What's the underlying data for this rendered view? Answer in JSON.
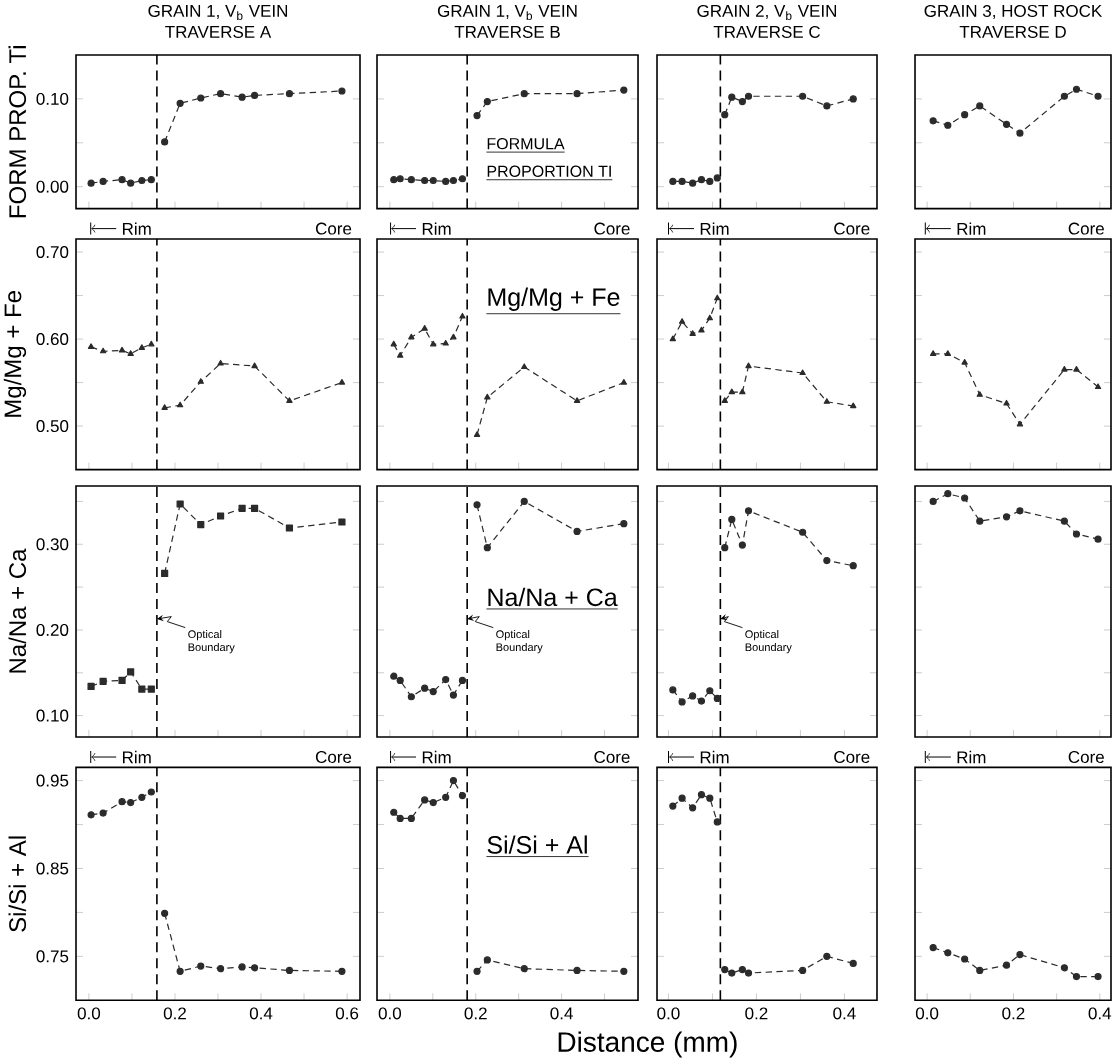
{
  "chart_data": [
    {
      "type": "line",
      "title": "GRAIN 1, V$_{b}$ VEIN",
      "subtitle": "TRAVERSE A",
      "ylabel": "FORM PROP. Ti",
      "annotations": [
        "Rim",
        "Core"
      ],
      "xlim": [
        -0.03,
        0.63
      ],
      "ylim": [
        -0.025,
        0.15
      ],
      "xticks": [
        0,
        0.1,
        0.2,
        0.3,
        0.4,
        0.5,
        0.6
      ],
      "yticks": [
        {
          "value": 0,
          "label": "0.00"
        },
        {
          "value": 0.05,
          "label": null
        },
        {
          "value": 0.1,
          "label": "0.10"
        }
      ],
      "tick_labels": "y",
      "marker": "circle",
      "line_style": "dashed",
      "ref_lines": [
        {
          "axis": "x",
          "value": 0.158,
          "line_style": "dashed"
        }
      ],
      "series": [
        {
          "color": "#2b2b2b",
          "x": [
            0.005,
            0.033,
            0.077,
            0.097,
            0.123,
            0.145
          ],
          "values": [
            0.004,
            0.006,
            0.008,
            0.004,
            0.007,
            0.008
          ]
        },
        {
          "color": "#2b2b2b",
          "x": [
            0.176,
            0.212,
            0.26,
            0.306,
            0.356,
            0.385,
            0.466,
            0.588
          ],
          "values": [
            0.051,
            0.095,
            0.101,
            0.106,
            0.102,
            0.104,
            0.106,
            0.109
          ]
        }
      ]
    },
    {
      "type": "line",
      "title": "GRAIN 1, V$_{b}$ VEIN",
      "subtitle": "TRAVERSE B",
      "annotations": [
        "Rim",
        "Core",
        "FORMULA",
        "PROPORTION TI"
      ],
      "xlim": [
        -0.03,
        0.578
      ],
      "ylim": [
        -0.025,
        0.15
      ],
      "xticks": [
        0,
        0.1,
        0.2,
        0.3,
        0.4,
        0.5
      ],
      "yticks": [
        0,
        0.05,
        0.1
      ],
      "tick_labels": false,
      "marker": "circle",
      "line_style": "dashed",
      "ref_lines": [
        {
          "axis": "x",
          "value": 0.18,
          "line_style": "dashed"
        }
      ],
      "series": [
        {
          "color": "#2b2b2b",
          "x": [
            0.009,
            0.024,
            0.05,
            0.081,
            0.101,
            0.13,
            0.148,
            0.169
          ],
          "values": [
            0.008,
            0.009,
            0.008,
            0.007,
            0.007,
            0.006,
            0.007,
            0.009
          ]
        },
        {
          "color": "#2b2b2b",
          "x": [
            0.203,
            0.227,
            0.313,
            0.436,
            0.545
          ],
          "values": [
            0.081,
            0.097,
            0.106,
            0.106,
            0.11
          ]
        }
      ]
    },
    {
      "type": "line",
      "title": "GRAIN 2, V$_{b}$ VEIN",
      "subtitle": "TRAVERSE C",
      "annotations": [
        "Rim",
        "Core"
      ],
      "xlim": [
        -0.026,
        0.474
      ],
      "ylim": [
        -0.025,
        0.15
      ],
      "xticks": [
        0,
        0.1,
        0.2,
        0.3,
        0.4
      ],
      "yticks": [
        0,
        0.05,
        0.1
      ],
      "tick_labels": false,
      "marker": "circle",
      "line_style": "dashed",
      "ref_lines": [
        {
          "axis": "x",
          "value": 0.118,
          "line_style": "dashed"
        }
      ],
      "series": [
        {
          "color": "#2b2b2b",
          "x": [
            0.01,
            0.031,
            0.055,
            0.075,
            0.094,
            0.111
          ],
          "values": [
            0.006,
            0.006,
            0.004,
            0.008,
            0.006,
            0.01
          ]
        },
        {
          "color": "#2b2b2b",
          "x": [
            0.128,
            0.144,
            0.168,
            0.182,
            0.305,
            0.36,
            0.42
          ],
          "values": [
            0.082,
            0.102,
            0.097,
            0.103,
            0.103,
            0.092,
            0.1
          ]
        }
      ]
    },
    {
      "type": "line",
      "title": "GRAIN 3, HOST ROCK",
      "subtitle": "TRAVERSE D",
      "annotations": [
        "Rim",
        "Core"
      ],
      "xlim": [
        -0.028,
        0.426
      ],
      "ylim": [
        -0.025,
        0.15
      ],
      "xticks": [
        0,
        0.1,
        0.2,
        0.3,
        0.4
      ],
      "yticks": [
        0,
        0.05,
        0.1
      ],
      "tick_labels": false,
      "marker": "circle",
      "line_style": "dashed",
      "series": [
        {
          "color": "#2b2b2b",
          "x": [
            0.014,
            0.048,
            0.087,
            0.122,
            0.184,
            0.215,
            0.318,
            0.346,
            0.396
          ],
          "values": [
            0.075,
            0.07,
            0.082,
            0.092,
            0.071,
            0.061,
            0.103,
            0.111,
            0.103
          ]
        }
      ]
    },
    {
      "type": "line",
      "ylabel": "Mg/Mg + Fe",
      "xlim": [
        -0.03,
        0.63
      ],
      "ylim": [
        0.45,
        0.715
      ],
      "xticks": [
        0,
        0.1,
        0.2,
        0.3,
        0.4,
        0.5,
        0.6
      ],
      "yticks": [
        {
          "value": 0.5,
          "label": "0.50"
        },
        {
          "value": 0.55,
          "label": null
        },
        {
          "value": 0.6,
          "label": "0.60"
        },
        {
          "value": 0.65,
          "label": null
        },
        {
          "value": 0.7,
          "label": "0.70"
        }
      ],
      "tick_labels": "y",
      "marker": "triangle",
      "line_style": "dashed",
      "ref_lines": [
        {
          "axis": "x",
          "value": 0.158,
          "line_style": "dashed"
        }
      ],
      "series": [
        {
          "color": "#2b2b2b",
          "x": [
            0.005,
            0.033,
            0.077,
            0.097,
            0.123,
            0.145
          ],
          "values": [
            0.591,
            0.586,
            0.587,
            0.583,
            0.59,
            0.594
          ]
        },
        {
          "color": "#2b2b2b",
          "x": [
            0.176,
            0.212,
            0.26,
            0.306,
            0.385,
            0.466,
            0.588
          ],
          "values": [
            0.521,
            0.524,
            0.551,
            0.572,
            0.569,
            0.529,
            0.55
          ]
        }
      ]
    },
    {
      "type": "line",
      "annotations": [
        "Mg/Mg + Fe"
      ],
      "xlim": [
        -0.03,
        0.578
      ],
      "ylim": [
        0.45,
        0.715
      ],
      "xticks": [
        0,
        0.1,
        0.2,
        0.3,
        0.4,
        0.5
      ],
      "yticks": [
        0.5,
        0.55,
        0.6,
        0.65,
        0.7
      ],
      "tick_labels": false,
      "marker": "triangle",
      "line_style": "dashed",
      "ref_lines": [
        {
          "axis": "x",
          "value": 0.18,
          "line_style": "dashed"
        }
      ],
      "series": [
        {
          "color": "#2b2b2b",
          "x": [
            0.009,
            0.024,
            0.05,
            0.081,
            0.101,
            0.13,
            0.148,
            0.169
          ],
          "values": [
            0.594,
            0.581,
            0.602,
            0.612,
            0.594,
            0.595,
            0.602,
            0.626
          ]
        },
        {
          "color": "#2b2b2b",
          "x": [
            0.203,
            0.227,
            0.313,
            0.436,
            0.545
          ],
          "values": [
            0.49,
            0.533,
            0.568,
            0.529,
            0.55
          ]
        }
      ]
    },
    {
      "type": "line",
      "xlim": [
        -0.026,
        0.474
      ],
      "ylim": [
        0.45,
        0.715
      ],
      "xticks": [
        0,
        0.1,
        0.2,
        0.3,
        0.4
      ],
      "yticks": [
        0.5,
        0.55,
        0.6,
        0.65,
        0.7
      ],
      "tick_labels": false,
      "marker": "triangle",
      "line_style": "dashed",
      "ref_lines": [
        {
          "axis": "x",
          "value": 0.118,
          "line_style": "dashed"
        }
      ],
      "series": [
        {
          "color": "#2b2b2b",
          "x": [
            0.01,
            0.031,
            0.055,
            0.075,
            0.094,
            0.111
          ],
          "values": [
            0.6,
            0.62,
            0.606,
            0.61,
            0.624,
            0.647
          ]
        },
        {
          "color": "#2b2b2b",
          "x": [
            0.128,
            0.144,
            0.168,
            0.182,
            0.305,
            0.36,
            0.42
          ],
          "values": [
            0.529,
            0.539,
            0.539,
            0.569,
            0.561,
            0.528,
            0.523
          ]
        }
      ]
    },
    {
      "type": "line",
      "xlim": [
        -0.028,
        0.426
      ],
      "ylim": [
        0.45,
        0.715
      ],
      "xticks": [
        0,
        0.1,
        0.2,
        0.3,
        0.4
      ],
      "yticks": [
        0.5,
        0.55,
        0.6,
        0.65,
        0.7
      ],
      "tick_labels": false,
      "marker": "triangle",
      "line_style": "dashed",
      "series": [
        {
          "color": "#2b2b2b",
          "x": [
            0.014,
            0.048,
            0.087,
            0.122,
            0.184,
            0.215,
            0.318,
            0.346,
            0.396
          ],
          "values": [
            0.583,
            0.583,
            0.573,
            0.536,
            0.526,
            0.502,
            0.565,
            0.565,
            0.545
          ]
        }
      ]
    },
    {
      "type": "line",
      "ylabel": "Na/Na + Ca",
      "annotations": [
        "Rim",
        "Core"
      ],
      "xlim": [
        -0.03,
        0.63
      ],
      "ylim": [
        0.075,
        0.368
      ],
      "xticks": [
        0,
        0.1,
        0.2,
        0.3,
        0.4,
        0.5,
        0.6
      ],
      "yticks": [
        {
          "value": 0.1,
          "label": "0.10"
        },
        {
          "value": 0.15,
          "label": null
        },
        {
          "value": 0.2,
          "label": "0.20"
        },
        {
          "value": 0.25,
          "label": null
        },
        {
          "value": 0.3,
          "label": "0.30"
        },
        {
          "value": 0.35,
          "label": null
        }
      ],
      "tick_labels": "y",
      "marker": "square",
      "line_style": "dashed",
      "ref_lines": [
        {
          "axis": "x",
          "value": 0.158,
          "line_style": "dashed",
          "label": "Optical Boundary"
        }
      ],
      "series": [
        {
          "color": "#2b2b2b",
          "x": [
            0.005,
            0.033,
            0.077,
            0.097,
            0.123,
            0.145
          ],
          "values": [
            0.134,
            0.14,
            0.141,
            0.151,
            0.131,
            0.131
          ]
        },
        {
          "color": "#2b2b2b",
          "x": [
            0.176,
            0.212,
            0.26,
            0.306,
            0.356,
            0.385,
            0.466,
            0.588
          ],
          "values": [
            0.266,
            0.347,
            0.323,
            0.333,
            0.342,
            0.342,
            0.319,
            0.326
          ]
        }
      ]
    },
    {
      "type": "line",
      "annotations": [
        "Rim",
        "Core",
        "Na/Na + Ca"
      ],
      "xlim": [
        -0.03,
        0.578
      ],
      "ylim": [
        0.075,
        0.368
      ],
      "xticks": [
        0,
        0.1,
        0.2,
        0.3,
        0.4,
        0.5
      ],
      "yticks": [
        0.1,
        0.15,
        0.2,
        0.25,
        0.3,
        0.35
      ],
      "tick_labels": false,
      "marker": "circle",
      "line_style": "dashed",
      "ref_lines": [
        {
          "axis": "x",
          "value": 0.18,
          "line_style": "dashed",
          "label": "Optical Boundary"
        }
      ],
      "series": [
        {
          "color": "#2b2b2b",
          "x": [
            0.009,
            0.024,
            0.05,
            0.081,
            0.101,
            0.13,
            0.148,
            0.169
          ],
          "values": [
            0.146,
            0.141,
            0.122,
            0.132,
            0.128,
            0.142,
            0.124,
            0.141
          ]
        },
        {
          "color": "#2b2b2b",
          "x": [
            0.203,
            0.227,
            0.313,
            0.436,
            0.545
          ],
          "values": [
            0.346,
            0.296,
            0.35,
            0.315,
            0.324
          ]
        }
      ]
    },
    {
      "type": "line",
      "annotations": [
        "Rim",
        "Core"
      ],
      "xlim": [
        -0.026,
        0.474
      ],
      "ylim": [
        0.075,
        0.368
      ],
      "xticks": [
        0,
        0.1,
        0.2,
        0.3,
        0.4
      ],
      "yticks": [
        0.1,
        0.15,
        0.2,
        0.25,
        0.3,
        0.35
      ],
      "tick_labels": false,
      "marker": "circle",
      "line_style": "dashed",
      "ref_lines": [
        {
          "axis": "x",
          "value": 0.118,
          "line_style": "dashed",
          "label": "Optical Boundary"
        }
      ],
      "series": [
        {
          "color": "#2b2b2b",
          "x": [
            0.01,
            0.031,
            0.055,
            0.075,
            0.094,
            0.111
          ],
          "values": [
            0.13,
            0.116,
            0.123,
            0.117,
            0.129,
            0.12
          ]
        },
        {
          "color": "#2b2b2b",
          "x": [
            0.128,
            0.144,
            0.168,
            0.182,
            0.305,
            0.36,
            0.42
          ],
          "values": [
            0.296,
            0.329,
            0.299,
            0.339,
            0.314,
            0.281,
            0.275
          ]
        }
      ]
    },
    {
      "type": "line",
      "annotations": [
        "Rim",
        "Core"
      ],
      "xlim": [
        -0.028,
        0.426
      ],
      "ylim": [
        0.075,
        0.368
      ],
      "xticks": [
        0,
        0.1,
        0.2,
        0.3,
        0.4
      ],
      "yticks": [
        0.1,
        0.15,
        0.2,
        0.25,
        0.3,
        0.35
      ],
      "tick_labels": false,
      "marker": "circle",
      "line_style": "dashed",
      "series": [
        {
          "color": "#2b2b2b",
          "x": [
            0.014,
            0.048,
            0.087,
            0.122,
            0.184,
            0.215,
            0.318,
            0.346,
            0.396
          ],
          "values": [
            0.35,
            0.359,
            0.354,
            0.327,
            0.332,
            0.339,
            0.327,
            0.312,
            0.306
          ]
        }
      ]
    },
    {
      "type": "line",
      "ylabel": "Si/Si + Al",
      "xlim": [
        -0.03,
        0.63
      ],
      "ylim": [
        0.7,
        0.965
      ],
      "xticks": [
        {
          "value": 0,
          "label": "0.0"
        },
        {
          "value": 0.1,
          "label": null
        },
        0.2,
        {
          "value": 0.3,
          "label": null
        },
        0.4,
        {
          "value": 0.5,
          "label": null
        },
        0.6
      ],
      "yticks": [
        {
          "value": 0.75,
          "label": "0.75"
        },
        {
          "value": 0.8,
          "label": null
        },
        {
          "value": 0.85,
          "label": "0.85"
        },
        {
          "value": 0.9,
          "label": null
        },
        {
          "value": 0.95,
          "label": "0.95"
        }
      ],
      "marker": "circle",
      "line_style": "dashed",
      "ref_lines": [
        {
          "axis": "x",
          "value": 0.158,
          "line_style": "dashed"
        }
      ],
      "series": [
        {
          "color": "#2b2b2b",
          "x": [
            0.005,
            0.033,
            0.077,
            0.097,
            0.123,
            0.145
          ],
          "values": [
            0.911,
            0.913,
            0.926,
            0.925,
            0.931,
            0.937
          ]
        },
        {
          "color": "#2b2b2b",
          "x": [
            0.176,
            0.212,
            0.26,
            0.306,
            0.356,
            0.385,
            0.466,
            0.588
          ],
          "values": [
            0.799,
            0.733,
            0.739,
            0.736,
            0.738,
            0.737,
            0.734,
            0.733
          ]
        }
      ]
    },
    {
      "type": "line",
      "xlabel": "Distance (mm)",
      "annotations": [
        "Si/Si + Al"
      ],
      "xlim": [
        -0.03,
        0.578
      ],
      "ylim": [
        0.7,
        0.965
      ],
      "xticks": [
        {
          "value": 0,
          "label": "0.0"
        },
        {
          "value": 0.1,
          "label": null
        },
        0.2,
        {
          "value": 0.3,
          "label": null
        },
        0.4,
        {
          "value": 0.5,
          "label": null
        }
      ],
      "yticks": [
        0.75,
        0.8,
        0.85,
        0.9,
        0.95
      ],
      "tick_labels": "x",
      "marker": "circle",
      "line_style": "dashed",
      "ref_lines": [
        {
          "axis": "x",
          "value": 0.18,
          "line_style": "dashed"
        }
      ],
      "series": [
        {
          "color": "#2b2b2b",
          "x": [
            0.009,
            0.024,
            0.05,
            0.081,
            0.101,
            0.13,
            0.148,
            0.169
          ],
          "values": [
            0.914,
            0.907,
            0.907,
            0.928,
            0.925,
            0.931,
            0.95,
            0.933
          ]
        },
        {
          "color": "#2b2b2b",
          "x": [
            0.203,
            0.227,
            0.313,
            0.436,
            0.545
          ],
          "values": [
            0.733,
            0.746,
            0.736,
            0.734,
            0.733
          ]
        }
      ]
    },
    {
      "type": "line",
      "xlim": [
        -0.026,
        0.474
      ],
      "ylim": [
        0.7,
        0.965
      ],
      "xticks": [
        {
          "value": 0,
          "label": "0.0"
        },
        {
          "value": 0.1,
          "label": null
        },
        0.2,
        {
          "value": 0.3,
          "label": null
        },
        0.4
      ],
      "yticks": [
        0.75,
        0.8,
        0.85,
        0.9,
        0.95
      ],
      "tick_labels": "x",
      "marker": "circle",
      "line_style": "dashed",
      "ref_lines": [
        {
          "axis": "x",
          "value": 0.118,
          "line_style": "dashed"
        }
      ],
      "series": [
        {
          "color": "#2b2b2b",
          "x": [
            0.01,
            0.031,
            0.055,
            0.075,
            0.094,
            0.111
          ],
          "values": [
            0.921,
            0.93,
            0.919,
            0.934,
            0.93,
            0.903
          ]
        },
        {
          "color": "#2b2b2b",
          "x": [
            0.128,
            0.144,
            0.168,
            0.182,
            0.305,
            0.36,
            0.42
          ],
          "values": [
            0.735,
            0.731,
            0.735,
            0.731,
            0.734,
            0.75,
            0.742
          ]
        }
      ]
    },
    {
      "type": "line",
      "xlim": [
        -0.028,
        0.426
      ],
      "ylim": [
        0.7,
        0.965
      ],
      "xticks": [
        {
          "value": 0,
          "label": "0.0"
        },
        {
          "value": 0.1,
          "label": null
        },
        0.2,
        {
          "value": 0.3,
          "label": null
        },
        0.4
      ],
      "yticks": [
        0.75,
        0.8,
        0.85,
        0.9,
        0.95
      ],
      "tick_labels": "x",
      "marker": "circle",
      "line_style": "dashed",
      "series": [
        {
          "color": "#2b2b2b",
          "x": [
            0.014,
            0.048,
            0.087,
            0.122,
            0.184,
            0.215,
            0.318,
            0.346,
            0.396
          ],
          "values": [
            0.76,
            0.754,
            0.747,
            0.734,
            0.74,
            0.752,
            0.737,
            0.727,
            0.727
          ]
        }
      ]
    }
  ]
}
